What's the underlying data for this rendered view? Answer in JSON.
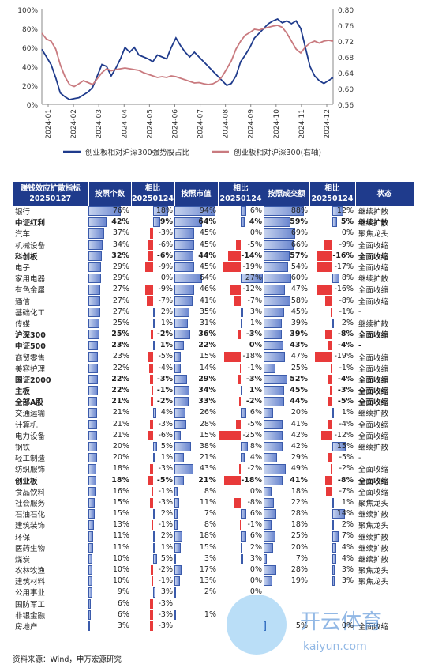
{
  "chart_data": {
    "type": "line",
    "x_ticks": [
      "2024-01",
      "2024-02",
      "2024-03",
      "2024-04",
      "2024-05",
      "2024-06",
      "2024-07",
      "2024-08",
      "2024-09",
      "2024-10",
      "2024-11",
      "2024-12"
    ],
    "y_left": {
      "ticks": [
        "0%",
        "20%",
        "40%",
        "60%",
        "80%",
        "100%"
      ],
      "range": [
        0,
        100
      ]
    },
    "y_right": {
      "ticks": [
        "0.56",
        "0.60",
        "0.64",
        "0.68",
        "0.72",
        "0.76",
        "0.80"
      ],
      "range": [
        0.56,
        0.8
      ]
    },
    "series": [
      {
        "name": "创业板相对沪深300强势股占比",
        "axis": "left",
        "color": "#1f3b8c",
        "values": [
          58,
          50,
          42,
          28,
          12,
          8,
          5,
          6,
          7,
          10,
          13,
          18,
          30,
          42,
          40,
          30,
          38,
          48,
          60,
          55,
          60,
          52,
          50,
          48,
          45,
          52,
          50,
          48,
          60,
          70,
          62,
          55,
          50,
          55,
          50,
          45,
          40,
          35,
          30,
          25,
          20,
          22,
          30,
          45,
          52,
          60,
          70,
          75,
          80,
          85,
          88,
          90,
          86,
          88,
          85,
          88,
          80,
          60,
          40,
          30,
          25,
          22,
          25,
          28
        ]
      },
      {
        "name": "创业板相对沪深300(右轴)",
        "axis": "right",
        "color": "#c97a7f",
        "values": [
          0.74,
          0.725,
          0.72,
          0.7,
          0.66,
          0.63,
          0.61,
          0.605,
          0.612,
          0.62,
          0.615,
          0.61,
          0.625,
          0.64,
          0.65,
          0.645,
          0.648,
          0.65,
          0.652,
          0.65,
          0.648,
          0.646,
          0.64,
          0.636,
          0.632,
          0.628,
          0.63,
          0.628,
          0.632,
          0.63,
          0.626,
          0.622,
          0.618,
          0.614,
          0.615,
          0.612,
          0.61,
          0.612,
          0.618,
          0.63,
          0.65,
          0.67,
          0.7,
          0.72,
          0.735,
          0.742,
          0.75,
          0.748,
          0.752,
          0.755,
          0.758,
          0.76,
          0.755,
          0.74,
          0.72,
          0.7,
          0.69,
          0.705,
          0.715,
          0.72,
          0.715,
          0.72,
          0.722,
          0.72
        ]
      }
    ],
    "table": {
      "headers": [
        "赚钱效应扩散指标 20250127",
        "按照个数",
        "相比 20250124",
        "按照市值",
        "相比 20250124",
        "按照成交额",
        "相比 20250124",
        "状态"
      ],
      "rows": [
        {
          "name": "银行",
          "bold": false,
          "count": "76%",
          "count_chg": "18%",
          "mv": "94%",
          "mv_chg": "6%",
          "amt": "88%",
          "amt_chg": "12%",
          "status": "继续扩散"
        },
        {
          "name": "中证红利",
          "bold": true,
          "count": "42%",
          "count_chg": "9%",
          "mv": "64%",
          "mv_chg": "4%",
          "amt": "59%",
          "amt_chg": "5%",
          "status": "继续扩散"
        },
        {
          "name": "汽车",
          "bold": false,
          "count": "37%",
          "count_chg": "-3%",
          "mv": "45%",
          "mv_chg": "0%",
          "amt": "69%",
          "amt_chg": "0%",
          "status": "聚焦龙头"
        },
        {
          "name": "机械设备",
          "bold": false,
          "count": "34%",
          "count_chg": "-6%",
          "mv": "45%",
          "mv_chg": "-5%",
          "amt": "66%",
          "amt_chg": "-9%",
          "status": "全面收缩"
        },
        {
          "name": "科创板",
          "bold": true,
          "count": "32%",
          "count_chg": "-6%",
          "mv": "44%",
          "mv_chg": "-14%",
          "amt": "57%",
          "amt_chg": "-16%",
          "status": "全面收缩"
        },
        {
          "name": "电子",
          "bold": false,
          "count": "29%",
          "count_chg": "-9%",
          "mv": "45%",
          "mv_chg": "-19%",
          "amt": "54%",
          "amt_chg": "-17%",
          "status": "全面收缩"
        },
        {
          "name": "家用电器",
          "bold": false,
          "count": "29%",
          "count_chg": "0%",
          "mv": "64%",
          "mv_chg": "27%",
          "amt": "60%",
          "amt_chg": "8%",
          "status": "继续扩散"
        },
        {
          "name": "有色金属",
          "bold": false,
          "count": "27%",
          "count_chg": "-9%",
          "mv": "46%",
          "mv_chg": "-12%",
          "amt": "47%",
          "amt_chg": "-16%",
          "status": "全面收缩"
        },
        {
          "name": "通信",
          "bold": false,
          "count": "27%",
          "count_chg": "-7%",
          "mv": "41%",
          "mv_chg": "-7%",
          "amt": "58%",
          "amt_chg": "-8%",
          "status": "全面收缩"
        },
        {
          "name": "基础化工",
          "bold": false,
          "count": "27%",
          "count_chg": "2%",
          "mv": "35%",
          "mv_chg": "3%",
          "amt": "45%",
          "amt_chg": "-1%",
          "status": "-"
        },
        {
          "name": "传媒",
          "bold": false,
          "count": "25%",
          "count_chg": "1%",
          "mv": "31%",
          "mv_chg": "1%",
          "amt": "39%",
          "amt_chg": "2%",
          "status": "继续扩散"
        },
        {
          "name": "沪深300",
          "bold": true,
          "count": "25%",
          "count_chg": "-2%",
          "mv": "36%",
          "mv_chg": "-3%",
          "amt": "39%",
          "amt_chg": "-8%",
          "status": "全面收缩"
        },
        {
          "name": "中证500",
          "bold": true,
          "count": "23%",
          "count_chg": "1%",
          "mv": "22%",
          "mv_chg": "0%",
          "amt": "43%",
          "amt_chg": "-4%",
          "status": "-"
        },
        {
          "name": "商贸零售",
          "bold": false,
          "count": "23%",
          "count_chg": "-5%",
          "mv": "15%",
          "mv_chg": "-18%",
          "amt": "47%",
          "amt_chg": "-19%",
          "status": "全面收缩"
        },
        {
          "name": "美容护理",
          "bold": false,
          "count": "22%",
          "count_chg": "-4%",
          "mv": "14%",
          "mv_chg": "-1%",
          "amt": "25%",
          "amt_chg": "-1%",
          "status": "全面收缩"
        },
        {
          "name": "国证2000",
          "bold": true,
          "count": "22%",
          "count_chg": "-3%",
          "mv": "29%",
          "mv_chg": "-3%",
          "amt": "52%",
          "amt_chg": "-4%",
          "status": "全面收缩"
        },
        {
          "name": "主板",
          "bold": true,
          "count": "22%",
          "count_chg": "-1%",
          "mv": "34%",
          "mv_chg": "1%",
          "amt": "45%",
          "amt_chg": "-3%",
          "status": "全面收缩"
        },
        {
          "name": "全部A股",
          "bold": true,
          "count": "21%",
          "count_chg": "-2%",
          "mv": "33%",
          "mv_chg": "-2%",
          "amt": "44%",
          "amt_chg": "-5%",
          "status": "全面收缩"
        },
        {
          "name": "交通运输",
          "bold": false,
          "count": "21%",
          "count_chg": "4%",
          "mv": "26%",
          "mv_chg": "6%",
          "amt": "20%",
          "amt_chg": "1%",
          "status": "继续扩散"
        },
        {
          "name": "计算机",
          "bold": false,
          "count": "21%",
          "count_chg": "-3%",
          "mv": "28%",
          "mv_chg": "-5%",
          "amt": "41%",
          "amt_chg": "-4%",
          "status": "全面收缩"
        },
        {
          "name": "电力设备",
          "bold": false,
          "count": "21%",
          "count_chg": "-6%",
          "mv": "15%",
          "mv_chg": "-25%",
          "amt": "42%",
          "amt_chg": "-12%",
          "status": "全面收缩"
        },
        {
          "name": "钢铁",
          "bold": false,
          "count": "20%",
          "count_chg": "5%",
          "mv": "38%",
          "mv_chg": "8%",
          "amt": "42%",
          "amt_chg": "15%",
          "status": "继续扩散"
        },
        {
          "name": "轻工制造",
          "bold": false,
          "count": "20%",
          "count_chg": "1%",
          "mv": "21%",
          "mv_chg": "4%",
          "amt": "29%",
          "amt_chg": "-5%",
          "status": "-"
        },
        {
          "name": "纺织服饰",
          "bold": false,
          "count": "18%",
          "count_chg": "-3%",
          "mv": "43%",
          "mv_chg": "-2%",
          "amt": "49%",
          "amt_chg": "-2%",
          "status": "全面收缩"
        },
        {
          "name": "创业板",
          "bold": true,
          "count": "18%",
          "count_chg": "-5%",
          "mv": "21%",
          "mv_chg": "-18%",
          "amt": "41%",
          "amt_chg": "-8%",
          "status": "全面收缩"
        },
        {
          "name": "食品饮料",
          "bold": false,
          "count": "16%",
          "count_chg": "-1%",
          "mv": "8%",
          "mv_chg": "0%",
          "amt": "18%",
          "amt_chg": "-7%",
          "status": "全面收缩"
        },
        {
          "name": "社会服务",
          "bold": false,
          "count": "15%",
          "count_chg": "-3%",
          "mv": "11%",
          "mv_chg": "-8%",
          "amt": "22%",
          "amt_chg": "1%",
          "status": "聚焦龙头"
        },
        {
          "name": "石油石化",
          "bold": false,
          "count": "15%",
          "count_chg": "2%",
          "mv": "7%",
          "mv_chg": "6%",
          "amt": "28%",
          "amt_chg": "14%",
          "status": "继续扩散"
        },
        {
          "name": "建筑装饰",
          "bold": false,
          "count": "13%",
          "count_chg": "-1%",
          "mv": "8%",
          "mv_chg": "-1%",
          "amt": "18%",
          "amt_chg": "2%",
          "status": "聚焦龙头"
        },
        {
          "name": "环保",
          "bold": false,
          "count": "11%",
          "count_chg": "2%",
          "mv": "18%",
          "mv_chg": "6%",
          "amt": "25%",
          "amt_chg": "7%",
          "status": "继续扩散"
        },
        {
          "name": "医药生物",
          "bold": false,
          "count": "11%",
          "count_chg": "1%",
          "mv": "15%",
          "mv_chg": "2%",
          "amt": "20%",
          "amt_chg": "4%",
          "status": "继续扩散"
        },
        {
          "name": "煤炭",
          "bold": false,
          "count": "10%",
          "count_chg": "5%",
          "mv": "3%",
          "mv_chg": "3%",
          "amt": "7%",
          "amt_chg": "4%",
          "status": "继续扩散"
        },
        {
          "name": "农林牧渔",
          "bold": false,
          "count": "10%",
          "count_chg": "-2%",
          "mv": "17%",
          "mv_chg": "0%",
          "amt": "28%",
          "amt_chg": "3%",
          "status": "聚焦龙头"
        },
        {
          "name": "建筑材料",
          "bold": false,
          "count": "10%",
          "count_chg": "-1%",
          "mv": "13%",
          "mv_chg": "0%",
          "amt": "19%",
          "amt_chg": "3%",
          "status": "聚焦龙头"
        },
        {
          "name": "公用事业",
          "bold": false,
          "count": "9%",
          "count_chg": "3%",
          "mv": "2%",
          "mv_chg": "0%",
          "amt": "",
          "amt_chg": "",
          "status": ""
        },
        {
          "name": "国防军工",
          "bold": false,
          "count": "6%",
          "count_chg": "-3%",
          "mv": "",
          "mv_chg": "",
          "amt": "",
          "amt_chg": "",
          "status": ""
        },
        {
          "name": "非银金融",
          "bold": false,
          "count": "6%",
          "count_chg": "-3%",
          "mv": "1%",
          "mv_chg": "",
          "amt": "",
          "amt_chg": "",
          "status": ""
        },
        {
          "name": "房地产",
          "bold": false,
          "count": "3%",
          "count_chg": "-3%",
          "mv": "",
          "mv_chg": "",
          "amt": "5%",
          "amt_chg": "0%",
          "status": "全面收缩"
        }
      ]
    }
  },
  "source_note": "资料来源：Wind，申万宏源研究",
  "watermark": {
    "brand": "开云体育",
    "url": "kaiyun.com"
  }
}
